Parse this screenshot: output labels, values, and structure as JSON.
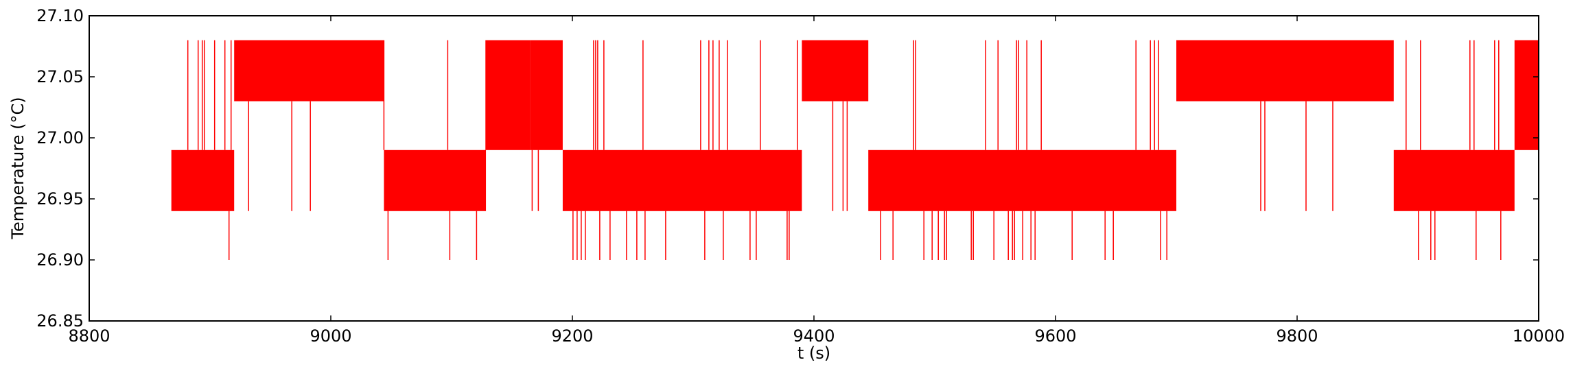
{
  "chart_data": {
    "type": "line",
    "xlabel": "t (s)",
    "ylabel": "Temperature (°C)",
    "xlim": [
      8800,
      10000
    ],
    "ylim": [
      26.85,
      27.1
    ],
    "xticks": [
      8800,
      9000,
      9200,
      9400,
      9600,
      9800,
      10000
    ],
    "xtick_labels": [
      "8800",
      "9000",
      "9200",
      "9400",
      "9600",
      "9800",
      "10000"
    ],
    "yticks": [
      26.85,
      26.9,
      26.95,
      27.0,
      27.05,
      27.1
    ],
    "ytick_labels": [
      "26.85",
      "26.90",
      "26.95",
      "27.00",
      "27.05",
      "27.10"
    ],
    "grid": false,
    "series": [
      {
        "color": "#ff0000",
        "x_range": [
          8868,
          10000
        ],
        "levels": [
          26.9,
          26.94,
          26.99,
          27.03,
          27.08
        ],
        "segments": [
          {
            "x": [
              8868,
              8920
            ],
            "low": 26.94,
            "high": 26.99,
            "spike_high": 27.08,
            "spike_low": 26.9
          },
          {
            "x": [
              8920,
              9044
            ],
            "low": 27.03,
            "high": 27.08,
            "spike_high": 27.08,
            "spike_low": 26.94
          },
          {
            "x": [
              9044,
              9128
            ],
            "low": 26.94,
            "high": 26.99,
            "spike_high": 27.08,
            "spike_low": 26.9
          },
          {
            "x": [
              9128,
              9165
            ],
            "low": 26.99,
            "high": 27.08,
            "spike_high": 27.08,
            "spike_low": 26.94
          },
          {
            "x": [
              9165,
              9192
            ],
            "low": 26.99,
            "high": 27.08,
            "spike_high": 27.08,
            "spike_low": 26.94
          },
          {
            "x": [
              9192,
              9390
            ],
            "low": 26.94,
            "high": 26.99,
            "spike_high": 27.08,
            "spike_low": 26.9
          },
          {
            "x": [
              9390,
              9445
            ],
            "low": 27.03,
            "high": 27.08,
            "spike_high": 27.08,
            "spike_low": 26.94
          },
          {
            "x": [
              9445,
              9700
            ],
            "low": 26.94,
            "high": 26.99,
            "spike_high": 27.08,
            "spike_low": 26.9
          },
          {
            "x": [
              9700,
              9880
            ],
            "low": 27.03,
            "high": 27.08,
            "spike_high": 27.08,
            "spike_low": 26.94
          },
          {
            "x": [
              9880,
              9980
            ],
            "low": 26.94,
            "high": 26.99,
            "spike_high": 27.08,
            "spike_low": 26.9
          },
          {
            "x": [
              9980,
              10000
            ],
            "low": 26.99,
            "high": 27.08,
            "spike_high": 27.08,
            "spike_low": 26.94
          }
        ]
      }
    ]
  }
}
